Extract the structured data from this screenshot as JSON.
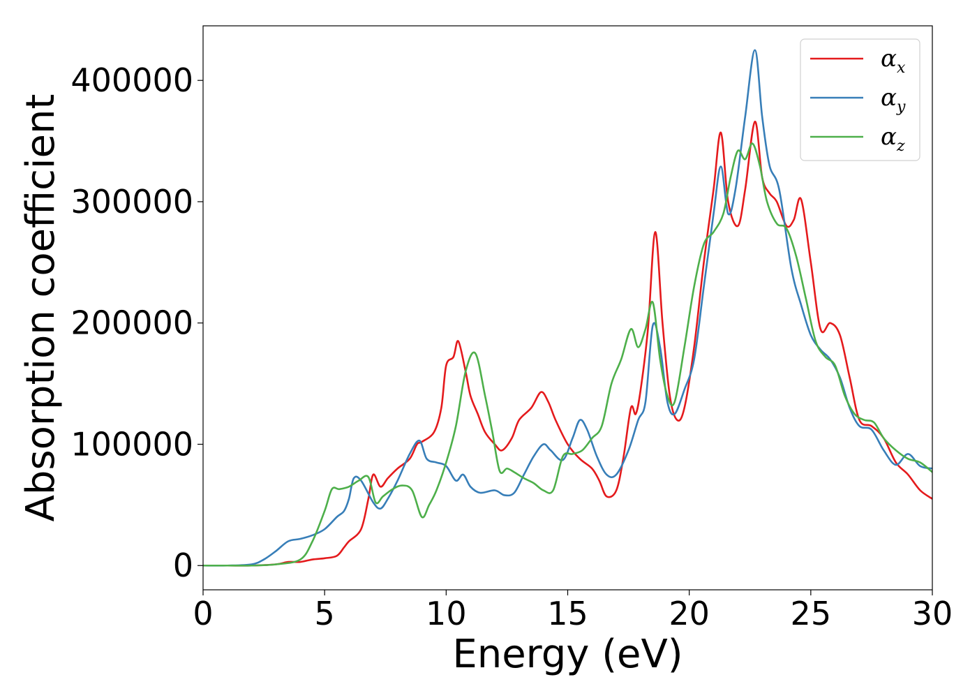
{
  "chart_data": {
    "type": "line",
    "title": "",
    "xlabel": "Energy (eV)",
    "ylabel": "Absorption coefficient",
    "xlim": [
      0,
      30
    ],
    "ylim": [
      -20000,
      445000
    ],
    "xticks": [
      0,
      5,
      10,
      15,
      20,
      25,
      30
    ],
    "yticks": [
      0,
      100000,
      200000,
      300000,
      400000
    ],
    "grid": false,
    "legend_position": "top-right",
    "series": [
      {
        "name": "α",
        "subscript": "x",
        "color": "#e41a1c",
        "x": [
          0,
          1,
          2,
          3,
          3.5,
          4,
          4.5,
          5,
          5.5,
          5.8,
          6,
          6.5,
          6.8,
          7,
          7.3,
          7.6,
          8,
          8.5,
          8.8,
          9,
          9.5,
          9.8,
          10,
          10.3,
          10.5,
          10.8,
          11,
          11.3,
          11.6,
          12,
          12.3,
          12.7,
          13,
          13.5,
          13.9,
          14.2,
          14.5,
          15,
          15.5,
          16,
          16.3,
          16.6,
          17,
          17.3,
          17.6,
          17.8,
          18,
          18.3,
          18.6,
          18.9,
          19.2,
          19.5,
          19.8,
          20.2,
          20.6,
          21,
          21.3,
          21.6,
          22,
          22.3,
          22.7,
          23,
          23.3,
          23.6,
          24,
          24.3,
          24.6,
          25,
          25.4,
          25.8,
          26.2,
          26.6,
          27,
          27.5,
          28,
          28.5,
          29,
          29.5,
          30
        ],
        "values": [
          0,
          0,
          0,
          1000,
          3000,
          3000,
          5000,
          6000,
          8000,
          15000,
          20000,
          30000,
          55000,
          75000,
          65000,
          72000,
          80000,
          88000,
          100000,
          102000,
          110000,
          130000,
          165000,
          172000,
          185000,
          160000,
          140000,
          125000,
          110000,
          100000,
          95000,
          105000,
          120000,
          130000,
          143000,
          135000,
          120000,
          100000,
          88000,
          80000,
          70000,
          57000,
          62000,
          90000,
          130000,
          125000,
          145000,
          195000,
          275000,
          200000,
          140000,
          120000,
          130000,
          180000,
          250000,
          310000,
          357000,
          300000,
          280000,
          310000,
          366000,
          320000,
          307000,
          300000,
          280000,
          285000,
          302000,
          250000,
          195000,
          200000,
          190000,
          155000,
          120000,
          115000,
          105000,
          85000,
          75000,
          62000,
          55000
        ]
      },
      {
        "name": "α",
        "subscript": "y",
        "color": "#377eb8",
        "x": [
          0,
          1,
          2,
          2.5,
          3,
          3.5,
          4,
          4.5,
          5,
          5.5,
          5.8,
          6,
          6.2,
          6.5,
          7,
          7.3,
          7.6,
          8,
          8.5,
          8.9,
          9.2,
          9.6,
          10,
          10.4,
          10.7,
          11,
          11.4,
          12,
          12.4,
          12.8,
          13.2,
          13.6,
          14,
          14.3,
          14.8,
          15.2,
          15.5,
          15.8,
          16.2,
          16.6,
          17,
          17.5,
          17.9,
          18.2,
          18.5,
          18.8,
          19.1,
          19.4,
          19.8,
          20.2,
          20.6,
          21,
          21.3,
          21.6,
          21.9,
          22.3,
          22.7,
          23,
          23.3,
          23.7,
          24.2,
          24.6,
          25,
          25.4,
          25.8,
          26.2,
          26.6,
          27,
          27.5,
          28,
          28.5,
          29,
          29.5,
          30
        ],
        "values": [
          0,
          0,
          1000,
          5000,
          12000,
          20000,
          22000,
          25000,
          30000,
          40000,
          45000,
          55000,
          72000,
          70000,
          52000,
          47000,
          55000,
          70000,
          92000,
          103000,
          88000,
          85000,
          82000,
          70000,
          75000,
          65000,
          60000,
          62000,
          58000,
          60000,
          75000,
          90000,
          100000,
          95000,
          87000,
          105000,
          120000,
          112000,
          90000,
          75000,
          75000,
          95000,
          120000,
          135000,
          198000,
          180000,
          135000,
          125000,
          145000,
          170000,
          230000,
          290000,
          329000,
          290000,
          310000,
          370000,
          425000,
          370000,
          330000,
          310000,
          245000,
          215000,
          190000,
          178000,
          170000,
          155000,
          130000,
          115000,
          112000,
          95000,
          83000,
          92000,
          82000,
          80000
        ]
      },
      {
        "name": "α",
        "subscript": "z",
        "color": "#4daf4a",
        "x": [
          0,
          1,
          2,
          3,
          4,
          4.5,
          5,
          5.3,
          5.6,
          6,
          6.4,
          6.8,
          7.1,
          7.4,
          7.8,
          8.2,
          8.6,
          9,
          9.3,
          9.6,
          10,
          10.4,
          10.8,
          11.2,
          11.6,
          11.9,
          12.2,
          12.5,
          12.8,
          13.2,
          13.6,
          14,
          14.4,
          14.8,
          15.2,
          15.6,
          16,
          16.4,
          16.8,
          17.2,
          17.6,
          17.9,
          18.2,
          18.5,
          18.8,
          19.1,
          19.4,
          19.8,
          20.2,
          20.6,
          21,
          21.4,
          21.7,
          22,
          22.3,
          22.6,
          22.9,
          23.2,
          23.6,
          24,
          24.4,
          24.8,
          25.2,
          25.6,
          26,
          26.4,
          26.8,
          27.2,
          27.6,
          28,
          28.5,
          29,
          29.5,
          30
        ],
        "values": [
          0,
          0,
          0,
          1000,
          5000,
          20000,
          45000,
          63000,
          63000,
          65000,
          70000,
          73000,
          52000,
          57000,
          63000,
          66000,
          62000,
          40000,
          50000,
          62000,
          85000,
          115000,
          160000,
          175000,
          140000,
          110000,
          78000,
          80000,
          77000,
          72000,
          68000,
          62000,
          62000,
          90000,
          92000,
          95000,
          105000,
          115000,
          150000,
          170000,
          195000,
          180000,
          195000,
          217000,
          170000,
          140000,
          135000,
          180000,
          230000,
          265000,
          275000,
          290000,
          320000,
          342000,
          335000,
          348000,
          330000,
          300000,
          282000,
          278000,
          255000,
          220000,
          185000,
          172000,
          165000,
          140000,
          125000,
          120000,
          118000,
          105000,
          95000,
          88000,
          85000,
          77000
        ]
      }
    ]
  }
}
